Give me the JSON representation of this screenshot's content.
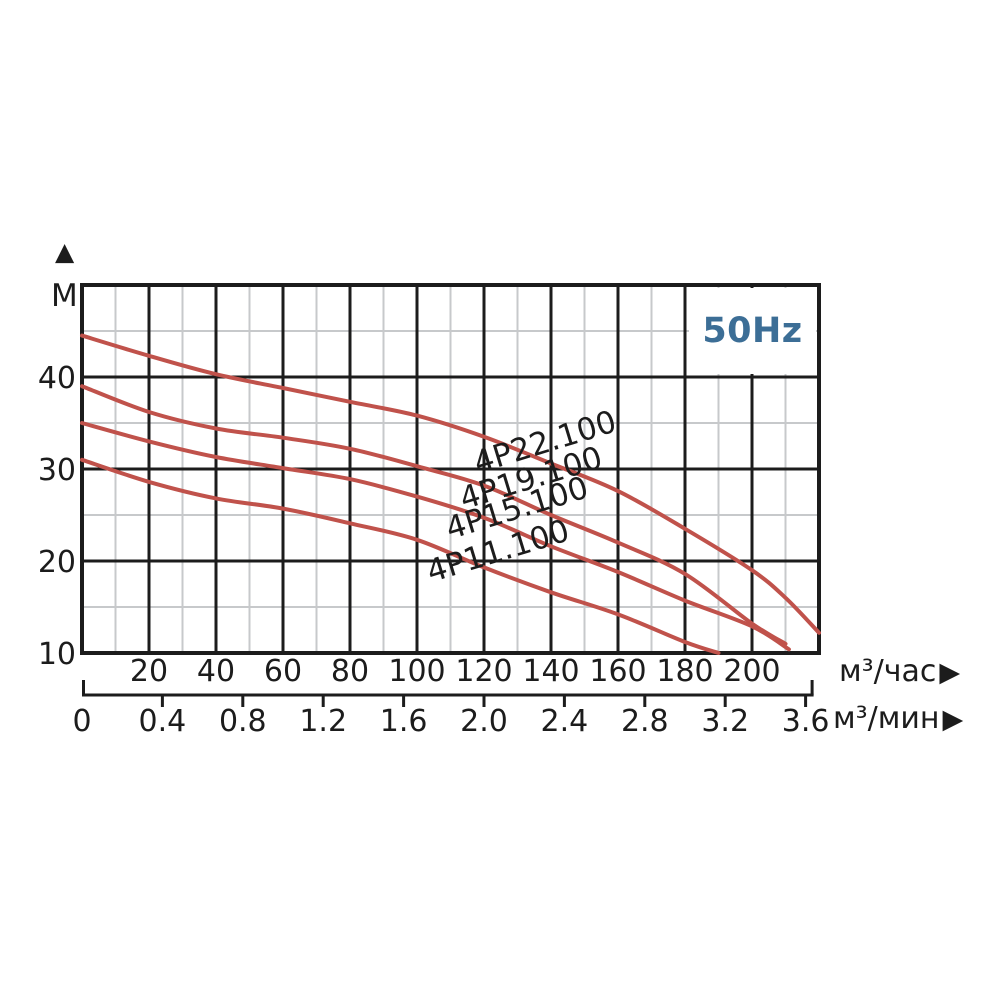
{
  "chart_data": {
    "type": "line",
    "badge": {
      "label": "50Hz",
      "color": "#3c6e96"
    },
    "y_axis": {
      "unit": "M",
      "arrow": "▲",
      "tick_values": [
        40,
        30,
        20,
        10
      ],
      "range": [
        10,
        50
      ],
      "major_step": 10,
      "minor_step": 5
    },
    "x_axis_hour": {
      "unit": "м³/час",
      "arrow": "▶",
      "tick_values": [
        20,
        40,
        60,
        80,
        100,
        120,
        140,
        160,
        180,
        200
      ],
      "range": [
        0,
        220
      ],
      "major_step": 20,
      "minor_step": 10
    },
    "x_axis_min": {
      "unit": "м³/мин",
      "arrow": "▶",
      "tick_labels": [
        "0",
        "0.4",
        "0.8",
        "1.2",
        "1.6",
        "2.0",
        "2.4",
        "2.8",
        "3.2",
        "3.6"
      ],
      "tick_values": [
        0,
        0.4,
        0.8,
        1.2,
        1.6,
        2.0,
        2.4,
        2.8,
        3.2,
        3.6
      ],
      "hour_per_min": 60
    },
    "grid": {
      "major_color": "#1c1c1c",
      "minor_color": "#c7c9cb",
      "grid_on": true
    },
    "series_color": "#c0524b",
    "legend_position": "inline-labels",
    "series": [
      {
        "name": "4P22.100",
        "points": [
          [
            0,
            44.5
          ],
          [
            20,
            42.3
          ],
          [
            40,
            40.3
          ],
          [
            60,
            38.8
          ],
          [
            80,
            37.3
          ],
          [
            100,
            35.8
          ],
          [
            120,
            33.5
          ],
          [
            140,
            30.6
          ],
          [
            160,
            27.6
          ],
          [
            180,
            23.5
          ],
          [
            200,
            19.0
          ],
          [
            210,
            16.0
          ],
          [
            220,
            12.2
          ]
        ]
      },
      {
        "name": "4P19.100",
        "points": [
          [
            0,
            39.0
          ],
          [
            20,
            36.2
          ],
          [
            40,
            34.4
          ],
          [
            60,
            33.4
          ],
          [
            80,
            32.2
          ],
          [
            100,
            30.3
          ],
          [
            120,
            28.2
          ],
          [
            140,
            25.0
          ],
          [
            160,
            22.0
          ],
          [
            180,
            18.6
          ],
          [
            200,
            13.2
          ],
          [
            210,
            11.0
          ]
        ]
      },
      {
        "name": "4P15.100",
        "points": [
          [
            0,
            35.0
          ],
          [
            20,
            33.0
          ],
          [
            40,
            31.3
          ],
          [
            60,
            30.1
          ],
          [
            80,
            28.9
          ],
          [
            100,
            27.0
          ],
          [
            120,
            24.7
          ],
          [
            140,
            21.6
          ],
          [
            160,
            18.8
          ],
          [
            180,
            15.7
          ],
          [
            200,
            12.9
          ],
          [
            211,
            10.4
          ]
        ]
      },
      {
        "name": "4P11.100",
        "points": [
          [
            0,
            31.0
          ],
          [
            20,
            28.6
          ],
          [
            40,
            26.8
          ],
          [
            60,
            25.7
          ],
          [
            80,
            24.1
          ],
          [
            100,
            22.3
          ],
          [
            120,
            19.3
          ],
          [
            140,
            16.6
          ],
          [
            160,
            14.2
          ],
          [
            180,
            11.2
          ],
          [
            190,
            10.0
          ]
        ]
      }
    ]
  }
}
